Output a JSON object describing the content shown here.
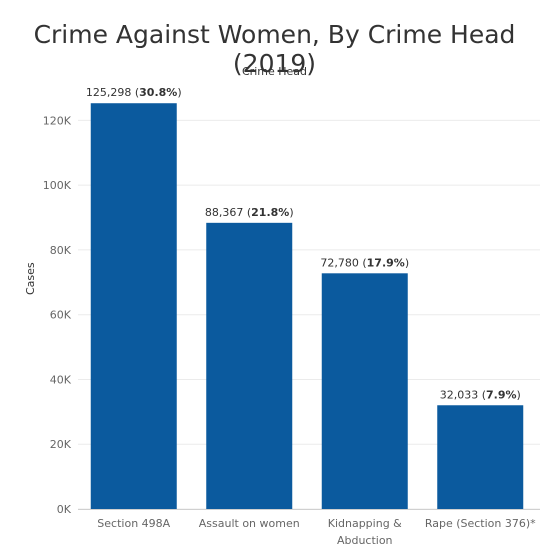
{
  "chart_data": {
    "type": "bar",
    "title": "Crime Against Women, By Crime Head (2019)",
    "subtitle": "Crime Head",
    "ylabel": "Cases",
    "xlabel": "",
    "categories": [
      {
        "lines": [
          "Section 498A"
        ]
      },
      {
        "lines": [
          "Assault on women"
        ]
      },
      {
        "lines": [
          "Kidnapping &",
          "Abduction"
        ]
      },
      {
        "lines": [
          "Rape (Section 376)*"
        ]
      }
    ],
    "values": [
      125298,
      88367,
      72780,
      32033
    ],
    "value_labels": [
      "125,298",
      "88,367",
      "72,780",
      "32,033"
    ],
    "percent_labels": [
      "30.8%",
      "21.8%",
      "17.9%",
      "7.9%"
    ],
    "ylim": [
      0,
      130000
    ],
    "yticks": [
      0,
      20000,
      40000,
      60000,
      80000,
      100000,
      120000
    ],
    "ytick_labels": [
      "0K",
      "20K",
      "40K",
      "60K",
      "80K",
      "100K",
      "120K"
    ],
    "grid": true,
    "colors": {
      "bar": "#0b5a9e",
      "grid": "#ebebeb",
      "text": "#333333",
      "axis_text": "#666666"
    }
  }
}
